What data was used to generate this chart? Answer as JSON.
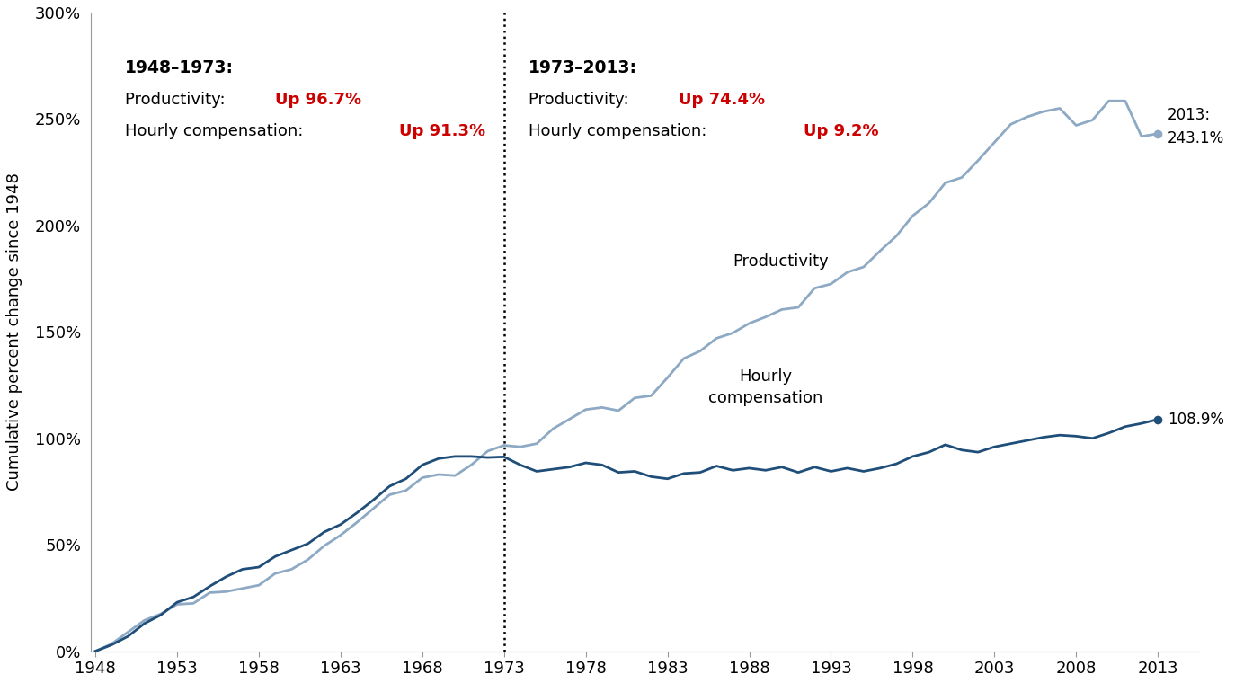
{
  "years": [
    1948,
    1949,
    1950,
    1951,
    1952,
    1953,
    1954,
    1955,
    1956,
    1957,
    1958,
    1959,
    1960,
    1961,
    1962,
    1963,
    1964,
    1965,
    1966,
    1967,
    1968,
    1969,
    1970,
    1971,
    1972,
    1973,
    1974,
    1975,
    1976,
    1977,
    1978,
    1979,
    1980,
    1981,
    1982,
    1983,
    1984,
    1985,
    1986,
    1987,
    1988,
    1989,
    1990,
    1991,
    1992,
    1993,
    1994,
    1995,
    1996,
    1997,
    1998,
    1999,
    2000,
    2001,
    2002,
    2003,
    2004,
    2005,
    2006,
    2007,
    2008,
    2009,
    2010,
    2011,
    2012,
    2013
  ],
  "productivity": [
    0.0,
    3.5,
    9.0,
    14.5,
    17.5,
    22.0,
    22.5,
    27.5,
    28.0,
    29.5,
    31.0,
    36.5,
    38.5,
    43.0,
    49.5,
    54.5,
    60.5,
    67.0,
    73.5,
    75.5,
    81.5,
    83.0,
    82.5,
    87.5,
    94.0,
    96.7,
    96.0,
    97.5,
    104.5,
    109.0,
    113.5,
    114.5,
    113.0,
    119.0,
    120.0,
    128.5,
    137.5,
    141.0,
    147.0,
    149.5,
    154.0,
    157.0,
    160.5,
    161.5,
    170.5,
    172.5,
    178.0,
    180.5,
    188.0,
    195.0,
    204.5,
    210.5,
    220.0,
    222.5,
    230.5,
    239.0,
    247.5,
    251.0,
    253.5,
    255.0,
    247.0,
    249.5,
    258.5,
    258.5,
    241.8,
    243.1
  ],
  "hourly_comp": [
    0.0,
    3.0,
    7.0,
    13.0,
    17.0,
    23.0,
    25.5,
    30.5,
    35.0,
    38.5,
    39.5,
    44.5,
    47.5,
    50.5,
    56.0,
    59.5,
    65.0,
    71.0,
    77.5,
    81.0,
    87.5,
    90.5,
    91.5,
    91.5,
    91.0,
    91.3,
    87.5,
    84.5,
    85.5,
    86.5,
    88.5,
    87.5,
    84.0,
    84.5,
    82.0,
    81.0,
    83.5,
    84.0,
    87.0,
    85.0,
    86.0,
    85.0,
    86.5,
    84.0,
    86.5,
    84.5,
    86.0,
    84.5,
    86.0,
    88.0,
    91.5,
    93.5,
    97.0,
    94.5,
    93.5,
    96.0,
    97.5,
    99.0,
    100.5,
    101.5,
    101.0,
    100.0,
    102.5,
    105.5,
    107.0,
    108.9
  ],
  "productivity_color": "#8da9c4",
  "hourly_comp_color": "#1f4e79",
  "divider_x": 1973,
  "xlim_min": 1948,
  "xlim_max": 2013,
  "ylim_min": 0,
  "ylim_max": 300,
  "yticks": [
    0,
    50,
    100,
    150,
    200,
    250,
    300
  ],
  "xticks": [
    1948,
    1953,
    1958,
    1963,
    1968,
    1973,
    1978,
    1983,
    1988,
    1993,
    1998,
    2003,
    2008,
    2013
  ],
  "ylabel": "Cumulative percent change since 1948"
}
